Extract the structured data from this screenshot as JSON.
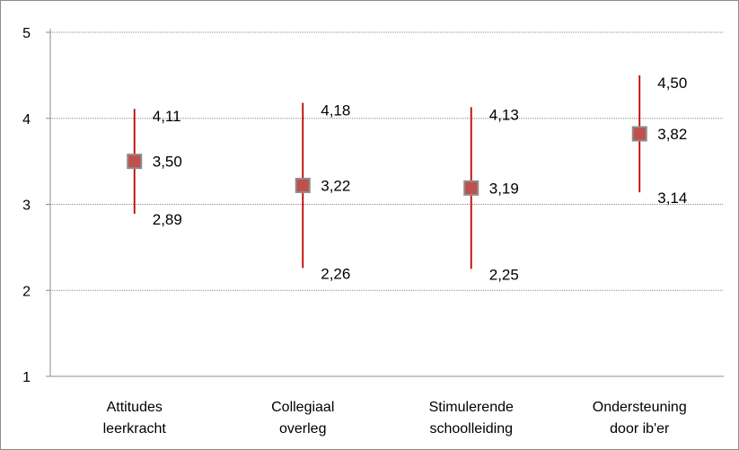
{
  "chart_data": {
    "type": "error-bar",
    "title": "",
    "xlabel": "",
    "ylabel": "",
    "ylim": [
      1,
      5
    ],
    "yticks": [
      "1",
      "2",
      "3",
      "4",
      "5"
    ],
    "grid": true,
    "categories": [
      [
        "Attitudes",
        "leerkracht"
      ],
      [
        "Collegiaal",
        "overleg"
      ],
      [
        "Stimulerende",
        "schoolleiding"
      ],
      [
        "Ondersteuning",
        "door ib'er"
      ]
    ],
    "values": [
      3.5,
      3.22,
      3.19,
      3.82
    ],
    "upper": [
      4.11,
      4.18,
      4.13,
      4.5
    ],
    "lower": [
      2.89,
      2.26,
      2.25,
      3.14
    ],
    "value_labels": [
      "3,50",
      "3,22",
      "3,19",
      "3,82"
    ],
    "upper_labels": [
      "4,11",
      "4,18",
      "4,13",
      "4,50"
    ],
    "lower_labels": [
      "2,89",
      "2,26",
      "2,25",
      "3,14"
    ],
    "colors": {
      "marker_fill": "#c0504d",
      "marker_stroke": "#8c8c8c",
      "error_line": "#c00000",
      "grid": "#8c8c8c",
      "axis": "#8c8c8c"
    }
  }
}
